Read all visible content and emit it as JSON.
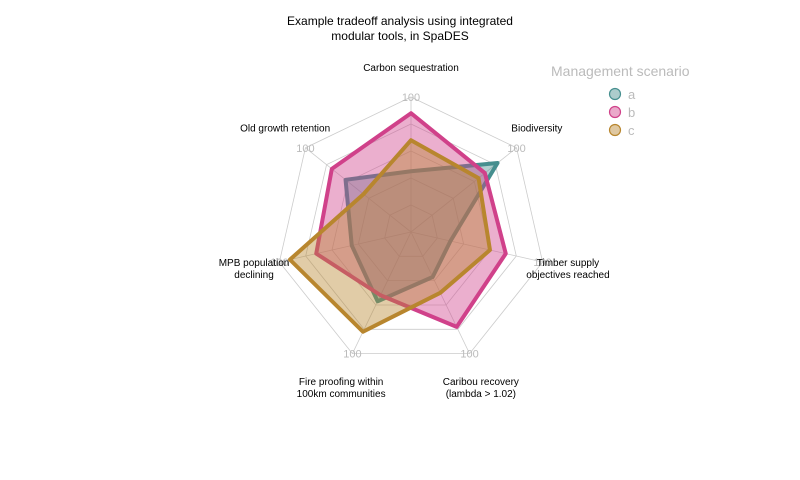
{
  "chart_data": {
    "type": "radar",
    "title": [
      "Example tradeoff analysis using integrated",
      "modular tools, in SpaDES"
    ],
    "axes": [
      {
        "label": [
          "Carbon sequestration"
        ]
      },
      {
        "label": [
          "Biodiversity"
        ]
      },
      {
        "label": [
          "Timber supply",
          "objectives reached"
        ]
      },
      {
        "label": [
          "Caribou recovery",
          "(lambda > 1.02)"
        ]
      },
      {
        "label": [
          "Fire proofing within",
          "100km communities"
        ]
      },
      {
        "label": [
          "MPB population",
          "declining"
        ]
      },
      {
        "label": [
          "Old growth retention"
        ]
      }
    ],
    "tick_label": "100",
    "max_value": 100,
    "grid_levels": 5,
    "legend": {
      "title": "Management scenario",
      "position": "top-right"
    },
    "series": [
      {
        "name": "a",
        "color": "#468f8f",
        "values": [
          45,
          82,
          30,
          37,
          57,
          45,
          62
        ]
      },
      {
        "name": "b",
        "color": "#d0418a",
        "values": [
          88,
          70,
          72,
          78,
          52,
          72,
          75
        ]
      },
      {
        "name": "c",
        "color": "#b8862e",
        "values": [
          68,
          64,
          60,
          50,
          82,
          92,
          45
        ]
      }
    ]
  }
}
